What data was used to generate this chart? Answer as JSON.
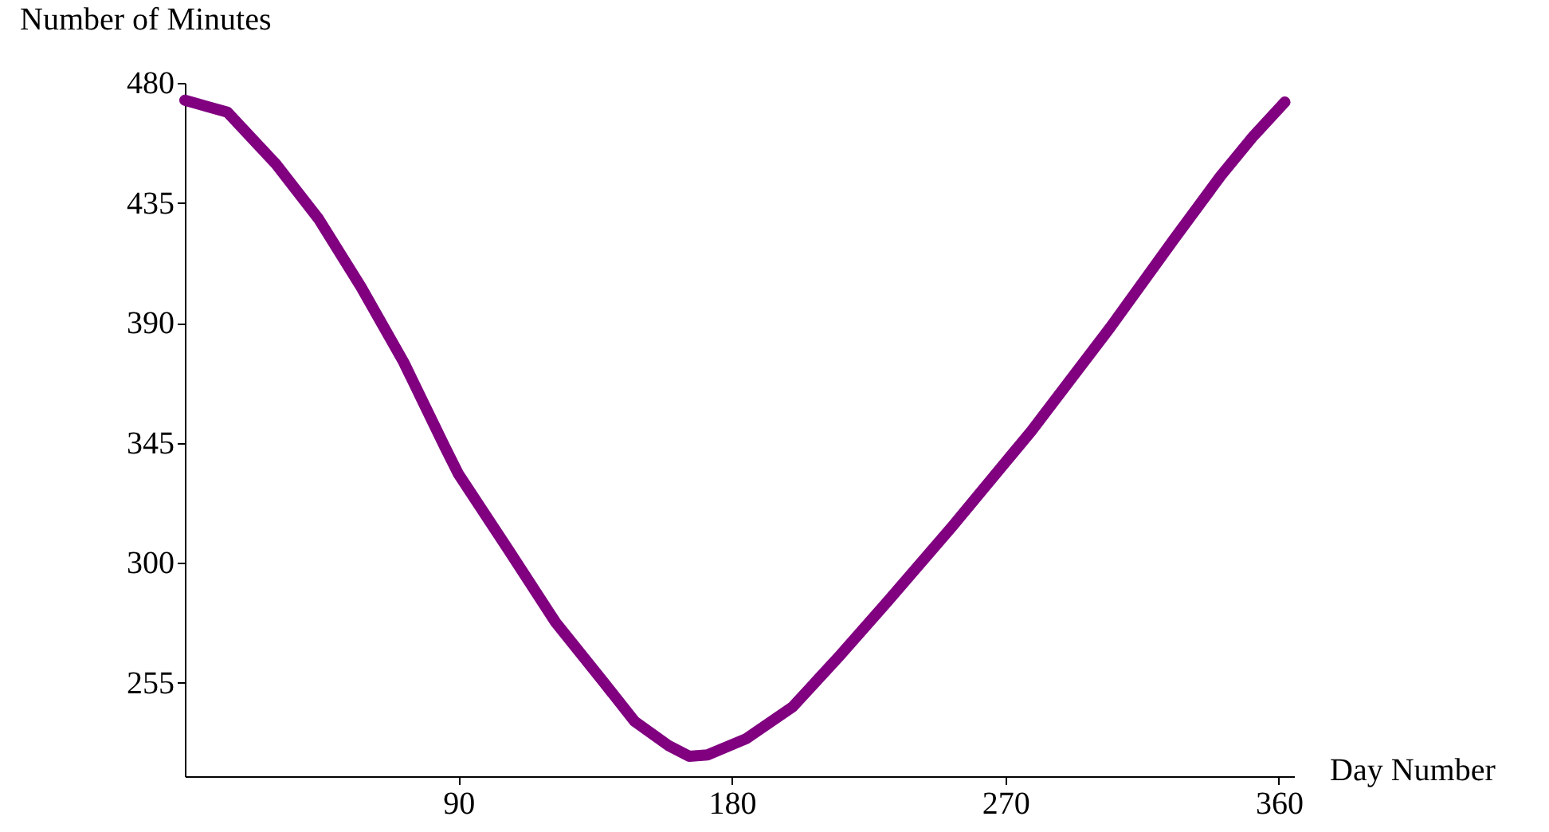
{
  "chart_data": {
    "type": "line",
    "xlabel": "Day Number",
    "ylabel": "Number of Minutes",
    "x": [
      0,
      14,
      30,
      44,
      58,
      72,
      85.5,
      90,
      106.6,
      122,
      138,
      148,
      159,
      166,
      172,
      184.6,
      200,
      216,
      231.6,
      252.5,
      278.6,
      304.6,
      325.5,
      341,
      351.6,
      362
    ],
    "series": [
      {
        "color": "#800080",
        "values": [
          473.5,
          469,
          449.5,
          429,
          403.4,
          375.3,
          343.6,
          333.4,
          304.7,
          277.7,
          255,
          240.6,
          231.6,
          227.5,
          228,
          234,
          246,
          265.8,
          286,
          313.6,
          349.5,
          388.4,
          421.4,
          445.3,
          460,
          472.8
        ]
      }
    ],
    "xlim": [
      0,
      365
    ],
    "ylim": [
      220,
      480
    ],
    "xticks": [
      90,
      180,
      270,
      360
    ],
    "yticks": [
      255,
      300,
      345,
      390,
      435,
      480
    ],
    "grid": false,
    "legend": false,
    "line_style": "solid"
  }
}
